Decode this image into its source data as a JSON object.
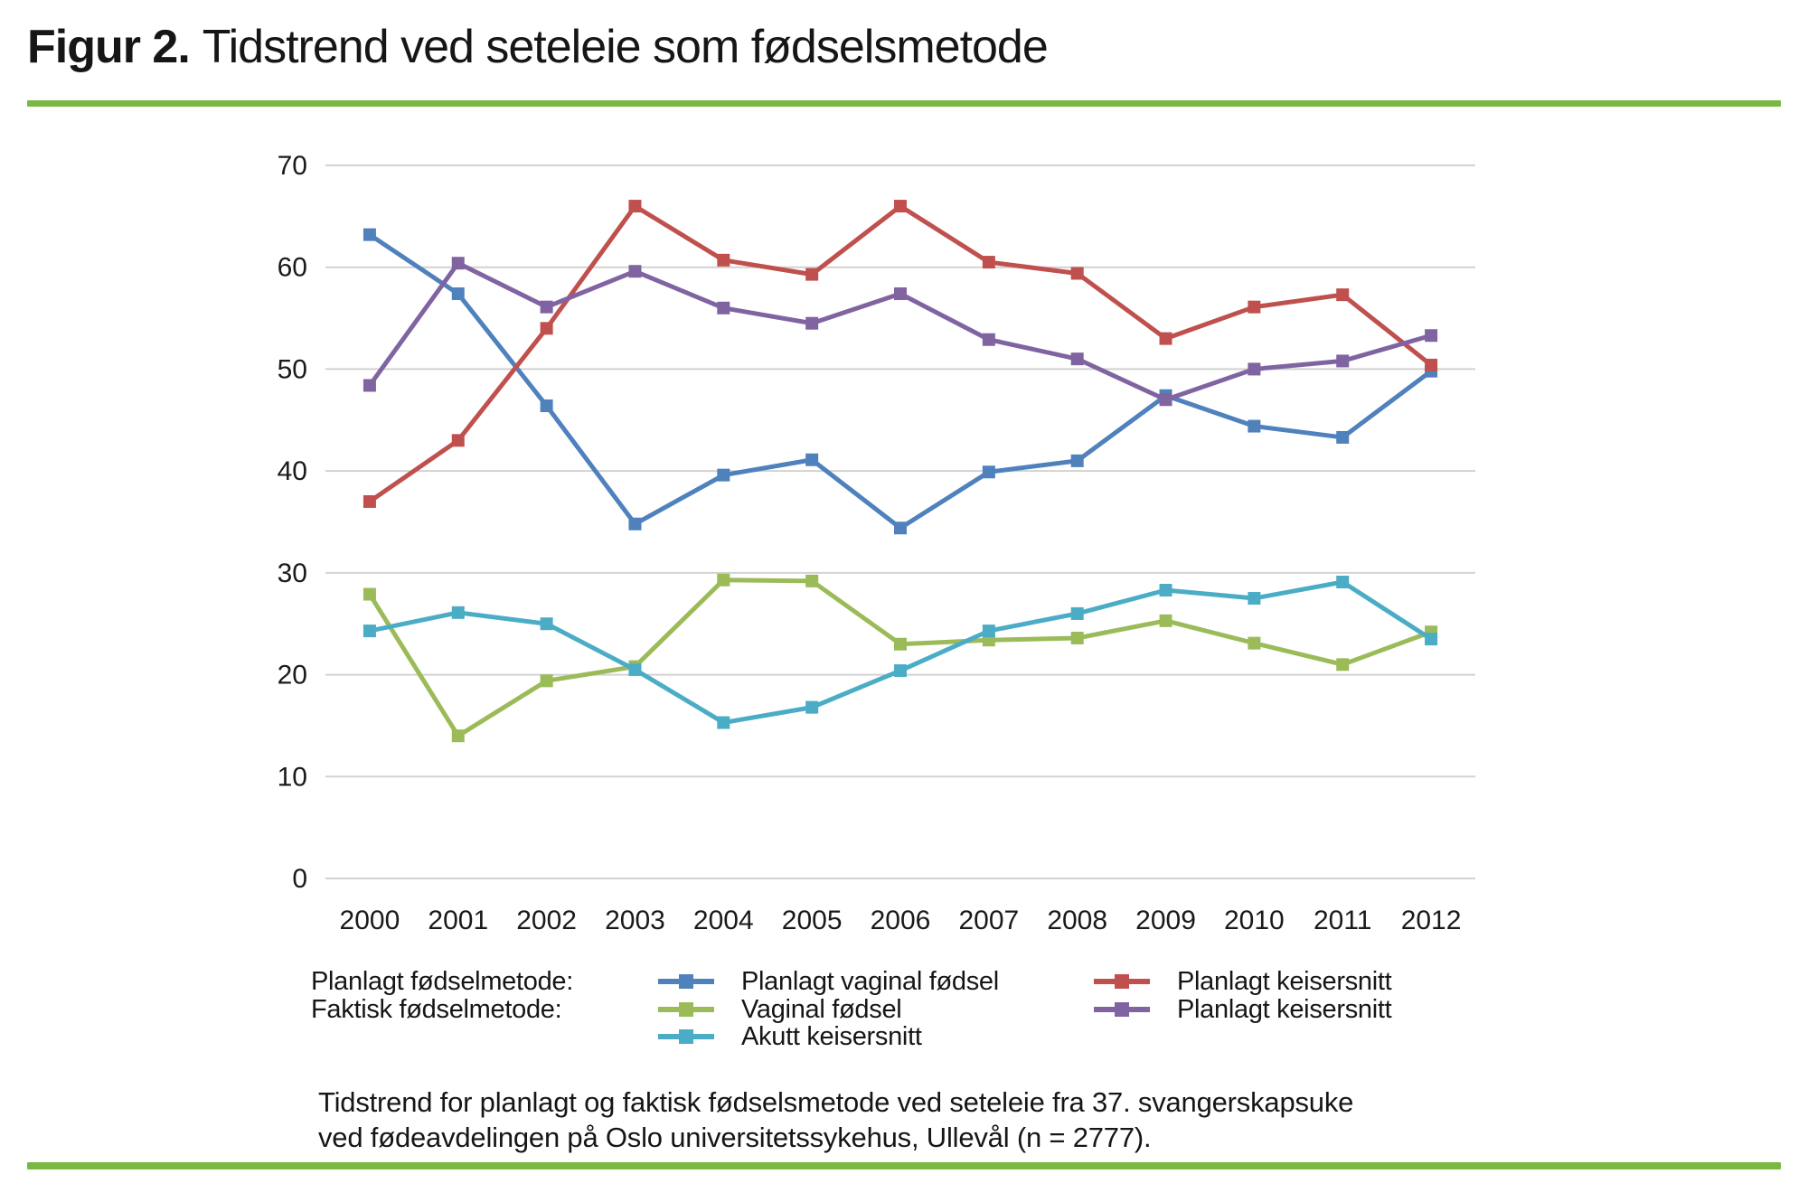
{
  "title": {
    "bold": "Figur 2.",
    "rest": "Tidstrend ved seteleie som fødselsmetode"
  },
  "accent_color": "#79b842",
  "chart_data": {
    "type": "line",
    "x": [
      "2000",
      "2001",
      "2002",
      "2003",
      "2004",
      "2005",
      "2006",
      "2007",
      "2008",
      "2009",
      "2010",
      "2011",
      "2012"
    ],
    "ylim": [
      0,
      70
    ],
    "ytick_step": 10,
    "grid": "horizontal-only",
    "grid_color": "#d2d2d2",
    "axis_text_color": "#1a1a1a",
    "legend_position": "below",
    "marker": "square",
    "series": [
      {
        "name": "Planlagt vaginal fødsel",
        "group": "Planlagt fødselmetode",
        "color": "#4f81bd",
        "values": [
          63.2,
          57.4,
          46.4,
          34.8,
          39.6,
          41.1,
          34.4,
          39.9,
          41.0,
          47.4,
          44.4,
          43.3,
          49.8
        ]
      },
      {
        "name": "Planlagt keisersnitt",
        "group": "Planlagt fødselmetode",
        "color": "#c0504d",
        "values": [
          37.0,
          43.0,
          54.0,
          66.0,
          60.7,
          59.3,
          66.0,
          60.5,
          59.4,
          53.0,
          56.1,
          57.3,
          50.4
        ]
      },
      {
        "name": "Planlagt keisersnitt",
        "group": "Faktisk fødselmetode",
        "color": "#8064a2",
        "values": [
          48.4,
          60.4,
          56.1,
          59.6,
          56.0,
          54.5,
          57.4,
          52.9,
          51.0,
          47.0,
          50.0,
          50.8,
          53.3
        ]
      },
      {
        "name": "Vaginal fødsel",
        "group": "Faktisk fødselmetode",
        "color": "#9bbb59",
        "values": [
          27.9,
          14.0,
          19.4,
          20.8,
          29.3,
          29.2,
          23.0,
          23.4,
          23.6,
          25.3,
          23.1,
          21.0,
          24.2
        ]
      },
      {
        "name": "Akutt keisersnitt",
        "group": "Faktisk fødselmetode",
        "color": "#4bacc6",
        "values": [
          24.3,
          26.1,
          25.0,
          20.5,
          15.3,
          16.8,
          20.4,
          24.3,
          26.0,
          28.3,
          27.5,
          29.1,
          23.5
        ]
      }
    ]
  },
  "legend": {
    "group_labels": [
      "Planlagt fødselmetode:",
      "Faktisk fødselmetode:"
    ],
    "columns": [
      {
        "series_indexes": [
          0,
          3,
          4
        ]
      },
      {
        "series_indexes": [
          1,
          2
        ]
      }
    ]
  },
  "caption": {
    "line1": "Tidstrend for planlagt og faktisk fødselsmetode ved seteleie fra 37. svangerskapsuke",
    "line2": "ved fødeavdelingen på Oslo universitetssykehus, Ullevål (n = 2777)."
  }
}
